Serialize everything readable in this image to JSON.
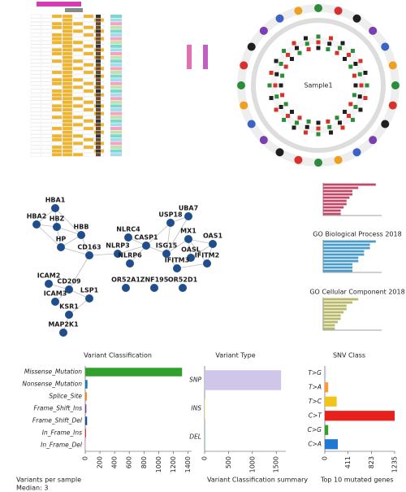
{
  "circos": {
    "label": "Sample1"
  },
  "network": {
    "nodes": [
      "HBA1",
      "HBA2",
      "HBZ",
      "HBB",
      "HP",
      "CD163",
      "ICAM2",
      "CD209",
      "ICAM3",
      "LSP1",
      "KSR1",
      "MAP2K1",
      "NLRC4",
      "NLRP3",
      "NLRP6",
      "CASP1",
      "USP18",
      "UBA7",
      "ISG15",
      "MX1",
      "OAS1",
      "OASL",
      "IFITM3",
      "IFITM2",
      "OR52A1",
      "ZNF195",
      "OR52D1"
    ]
  },
  "captions": [
    "Variants per sample",
    "Median: 3",
    "Variant Classification summary",
    "Top 10 mutated genes"
  ],
  "chart_data": [
    {
      "type": "bar",
      "title": "Variant Classification",
      "categories": [
        "Missense_Mutation",
        "Nonsense_Mutation",
        "Splice_Site",
        "Frame_Shift_Ins",
        "Frame_Shift_Del",
        "In_Frame_Ins",
        "In_Frame_Del"
      ],
      "values": [
        1320,
        30,
        20,
        15,
        25,
        10,
        5
      ],
      "colors": [
        "#33a02c",
        "#1f78b4",
        "#ff7f00",
        "#6a3d9a",
        "#1f4e9c",
        "#e31a1c",
        "#fb9a99"
      ],
      "xlim": [
        0,
        1450
      ],
      "xticks": [
        0,
        200,
        400,
        600,
        800,
        1000,
        1200,
        1400
      ]
    },
    {
      "type": "bar",
      "title": "Variant Type",
      "categories": [
        "SNP",
        "INS",
        "DEL"
      ],
      "values": [
        1600,
        20,
        15
      ],
      "colors": [
        "#cfc6ea",
        "#f6f3b8",
        "#8fd3c9"
      ],
      "xlim": [
        0,
        1700
      ],
      "xticks": [
        0,
        500,
        1000,
        1500
      ]
    },
    {
      "type": "bar",
      "title": "SNV Class",
      "categories": [
        "T>G",
        "T>A",
        "T>C",
        "C>T",
        "C>G",
        "C>A"
      ],
      "values": [
        20,
        60,
        210,
        1235,
        60,
        230
      ],
      "colors": [
        "#cfc6ea",
        "#ff9a2e",
        "#f0c419",
        "#e8211c",
        "#33a02c",
        "#1f78d1"
      ],
      "xlim": [
        0,
        1235
      ],
      "xticks": [
        0,
        411,
        823,
        1235
      ]
    },
    {
      "type": "bar",
      "values": [
        9,
        6,
        5,
        5,
        4.5,
        4,
        4,
        3.5,
        3,
        3
      ],
      "color": "#c04a6a",
      "xlim": [
        0,
        10
      ]
    },
    {
      "type": "bar",
      "title": "GO Biological Process 2018",
      "values": [
        9,
        8,
        8,
        7,
        7,
        6,
        6,
        5,
        5,
        5
      ],
      "color": "#4a9cc6",
      "xlim": [
        0,
        10
      ]
    },
    {
      "type": "bar",
      "title": "GO Cellular Component 2018",
      "values": [
        6,
        5,
        4,
        4,
        3.5,
        3,
        3,
        2.5,
        2,
        2
      ],
      "color": "#b8b86a",
      "xlim": [
        0,
        10
      ]
    }
  ]
}
